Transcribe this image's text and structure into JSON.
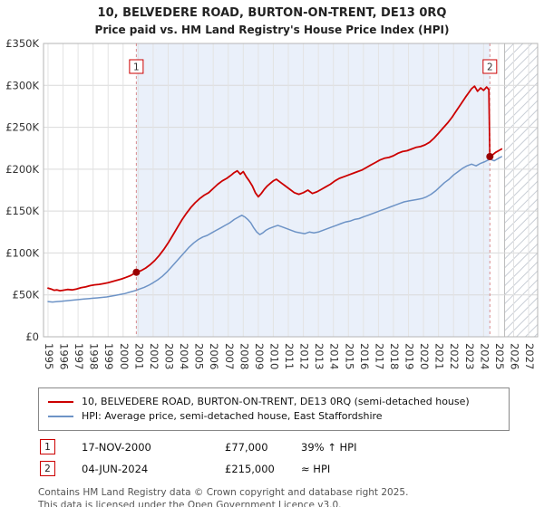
{
  "chart_data": {
    "type": "line",
    "title": "10, BELVEDERE ROAD, BURTON-ON-TRENT, DE13 0RQ",
    "subtitle": "Price paid vs. HM Land Registry's House Price Index (HPI)",
    "xlim": [
      1994.7,
      2027.6
    ],
    "ylim": [
      0,
      350
    ],
    "y_unit": "£K (thousands of pounds)",
    "grid": true,
    "legend_position": "below",
    "yticks": [
      {
        "v": 0,
        "label": "£0"
      },
      {
        "v": 50,
        "label": "£50K"
      },
      {
        "v": 100,
        "label": "£100K"
      },
      {
        "v": 150,
        "label": "£150K"
      },
      {
        "v": 200,
        "label": "£200K"
      },
      {
        "v": 250,
        "label": "£250K"
      },
      {
        "v": 300,
        "label": "£300K"
      },
      {
        "v": 350,
        "label": "£350K"
      }
    ],
    "xticks": [
      1995,
      1996,
      1997,
      1998,
      1999,
      2000,
      2001,
      2002,
      2003,
      2004,
      2005,
      2006,
      2007,
      2008,
      2009,
      2010,
      2011,
      2012,
      2013,
      2014,
      2015,
      2016,
      2017,
      2018,
      2019,
      2020,
      2021,
      2022,
      2023,
      2024,
      2025,
      2026,
      2027
    ],
    "shaded_region": {
      "from": 2000.88,
      "to": 2024.42,
      "color": "#eaf0fa"
    },
    "hatched_region": {
      "from": 2025.4,
      "to": 2027.6
    },
    "sale_markers": [
      {
        "n": "1",
        "x": 2000.88,
        "y": 77
      },
      {
        "n": "2",
        "x": 2024.42,
        "y": 215
      }
    ],
    "series": [
      {
        "name": "property-price",
        "color": "#cc0000",
        "width": 1.8,
        "points": [
          [
            1995.0,
            58
          ],
          [
            1995.2,
            57
          ],
          [
            1995.4,
            55.5
          ],
          [
            1995.6,
            56
          ],
          [
            1995.8,
            55
          ],
          [
            1996.0,
            55.5
          ],
          [
            1996.3,
            56.5
          ],
          [
            1996.6,
            56
          ],
          [
            1996.9,
            57
          ],
          [
            1997.2,
            58.5
          ],
          [
            1997.5,
            59.5
          ],
          [
            1997.8,
            61
          ],
          [
            1998.1,
            62
          ],
          [
            1998.4,
            62.5
          ],
          [
            1998.7,
            63.5
          ],
          [
            1999.0,
            64.5
          ],
          [
            1999.3,
            66
          ],
          [
            1999.6,
            67.5
          ],
          [
            1999.9,
            69
          ],
          [
            2000.2,
            71
          ],
          [
            2000.5,
            73
          ],
          [
            2000.88,
            77
          ],
          [
            2001.2,
            79
          ],
          [
            2001.5,
            82
          ],
          [
            2001.8,
            86
          ],
          [
            2002.1,
            91
          ],
          [
            2002.4,
            97
          ],
          [
            2002.7,
            104
          ],
          [
            2003.0,
            112
          ],
          [
            2003.3,
            121
          ],
          [
            2003.6,
            130
          ],
          [
            2003.9,
            139
          ],
          [
            2004.2,
            147
          ],
          [
            2004.5,
            154
          ],
          [
            2004.8,
            160
          ],
          [
            2005.1,
            165
          ],
          [
            2005.4,
            169
          ],
          [
            2005.7,
            172
          ],
          [
            2006.0,
            177
          ],
          [
            2006.3,
            182
          ],
          [
            2006.6,
            186
          ],
          [
            2006.9,
            189
          ],
          [
            2007.2,
            193
          ],
          [
            2007.4,
            196
          ],
          [
            2007.6,
            198
          ],
          [
            2007.8,
            194
          ],
          [
            2008.0,
            197
          ],
          [
            2008.2,
            191
          ],
          [
            2008.4,
            186
          ],
          [
            2008.6,
            180
          ],
          [
            2008.8,
            172
          ],
          [
            2009.0,
            167
          ],
          [
            2009.2,
            171
          ],
          [
            2009.4,
            176
          ],
          [
            2009.6,
            180
          ],
          [
            2009.8,
            183
          ],
          [
            2010.0,
            186
          ],
          [
            2010.2,
            188
          ],
          [
            2010.5,
            184
          ],
          [
            2010.8,
            180
          ],
          [
            2011.1,
            176
          ],
          [
            2011.4,
            172
          ],
          [
            2011.7,
            170
          ],
          [
            2012.0,
            172
          ],
          [
            2012.3,
            175
          ],
          [
            2012.6,
            171
          ],
          [
            2012.9,
            173
          ],
          [
            2013.2,
            176
          ],
          [
            2013.5,
            179
          ],
          [
            2013.8,
            182
          ],
          [
            2014.1,
            186
          ],
          [
            2014.4,
            189
          ],
          [
            2014.7,
            191
          ],
          [
            2015.0,
            193
          ],
          [
            2015.3,
            195
          ],
          [
            2015.6,
            197
          ],
          [
            2015.9,
            199
          ],
          [
            2016.2,
            202
          ],
          [
            2016.5,
            205
          ],
          [
            2016.8,
            208
          ],
          [
            2017.1,
            211
          ],
          [
            2017.4,
            213
          ],
          [
            2017.7,
            214
          ],
          [
            2018.0,
            216
          ],
          [
            2018.3,
            219
          ],
          [
            2018.6,
            221
          ],
          [
            2018.9,
            222
          ],
          [
            2019.2,
            224
          ],
          [
            2019.5,
            226
          ],
          [
            2019.8,
            227
          ],
          [
            2020.1,
            229
          ],
          [
            2020.4,
            232
          ],
          [
            2020.7,
            237
          ],
          [
            2021.0,
            243
          ],
          [
            2021.3,
            249
          ],
          [
            2021.6,
            255
          ],
          [
            2021.9,
            262
          ],
          [
            2022.2,
            270
          ],
          [
            2022.5,
            278
          ],
          [
            2022.8,
            286
          ],
          [
            2023.0,
            291
          ],
          [
            2023.2,
            296
          ],
          [
            2023.4,
            299
          ],
          [
            2023.6,
            293
          ],
          [
            2023.8,
            297
          ],
          [
            2024.0,
            294
          ],
          [
            2024.2,
            298
          ],
          [
            2024.35,
            295
          ],
          [
            2024.42,
            215
          ],
          [
            2024.6,
            217
          ],
          [
            2024.8,
            220
          ],
          [
            2025.0,
            222
          ],
          [
            2025.2,
            224
          ]
        ]
      },
      {
        "name": "hpi-average-price",
        "color": "#6d93c6",
        "width": 1.5,
        "points": [
          [
            1995.0,
            42
          ],
          [
            1995.3,
            41.5
          ],
          [
            1995.6,
            42
          ],
          [
            1995.9,
            42.5
          ],
          [
            1996.2,
            43
          ],
          [
            1996.5,
            43.5
          ],
          [
            1996.8,
            44
          ],
          [
            1997.1,
            44.5
          ],
          [
            1997.4,
            45
          ],
          [
            1997.7,
            45.5
          ],
          [
            1998.0,
            46
          ],
          [
            1998.3,
            46.5
          ],
          [
            1998.6,
            47
          ],
          [
            1998.9,
            47.5
          ],
          [
            1999.2,
            48.5
          ],
          [
            1999.5,
            49.5
          ],
          [
            1999.8,
            50.5
          ],
          [
            2000.1,
            51.5
          ],
          [
            2000.4,
            53
          ],
          [
            2000.7,
            54.5
          ],
          [
            2000.88,
            55.5
          ],
          [
            2001.1,
            57
          ],
          [
            2001.4,
            59
          ],
          [
            2001.7,
            61.5
          ],
          [
            2002.0,
            64.5
          ],
          [
            2002.3,
            68
          ],
          [
            2002.6,
            72
          ],
          [
            2002.9,
            77
          ],
          [
            2003.2,
            83
          ],
          [
            2003.5,
            89
          ],
          [
            2003.8,
            95
          ],
          [
            2004.1,
            101
          ],
          [
            2004.4,
            107
          ],
          [
            2004.7,
            112
          ],
          [
            2005.0,
            116
          ],
          [
            2005.3,
            119
          ],
          [
            2005.6,
            121
          ],
          [
            2005.9,
            124
          ],
          [
            2006.2,
            127
          ],
          [
            2006.5,
            130
          ],
          [
            2006.8,
            133
          ],
          [
            2007.1,
            136
          ],
          [
            2007.4,
            140
          ],
          [
            2007.7,
            143
          ],
          [
            2007.9,
            145
          ],
          [
            2008.1,
            143
          ],
          [
            2008.3,
            140
          ],
          [
            2008.5,
            136
          ],
          [
            2008.7,
            130
          ],
          [
            2008.9,
            125
          ],
          [
            2009.1,
            122
          ],
          [
            2009.3,
            124
          ],
          [
            2009.5,
            127
          ],
          [
            2009.7,
            129
          ],
          [
            2010.0,
            131
          ],
          [
            2010.3,
            133
          ],
          [
            2010.6,
            131
          ],
          [
            2010.9,
            129
          ],
          [
            2011.2,
            127
          ],
          [
            2011.5,
            125
          ],
          [
            2011.8,
            124
          ],
          [
            2012.1,
            123
          ],
          [
            2012.4,
            125
          ],
          [
            2012.7,
            124
          ],
          [
            2013.0,
            125
          ],
          [
            2013.3,
            127
          ],
          [
            2013.6,
            129
          ],
          [
            2013.9,
            131
          ],
          [
            2014.2,
            133
          ],
          [
            2014.5,
            135
          ],
          [
            2014.8,
            137
          ],
          [
            2015.1,
            138
          ],
          [
            2015.4,
            140
          ],
          [
            2015.7,
            141
          ],
          [
            2016.0,
            143
          ],
          [
            2016.3,
            145
          ],
          [
            2016.6,
            147
          ],
          [
            2016.9,
            149
          ],
          [
            2017.2,
            151
          ],
          [
            2017.5,
            153
          ],
          [
            2017.8,
            155
          ],
          [
            2018.1,
            157
          ],
          [
            2018.4,
            159
          ],
          [
            2018.7,
            161
          ],
          [
            2019.0,
            162
          ],
          [
            2019.3,
            163
          ],
          [
            2019.6,
            164
          ],
          [
            2019.9,
            165
          ],
          [
            2020.2,
            167
          ],
          [
            2020.5,
            170
          ],
          [
            2020.8,
            174
          ],
          [
            2021.1,
            179
          ],
          [
            2021.4,
            184
          ],
          [
            2021.7,
            188
          ],
          [
            2022.0,
            193
          ],
          [
            2022.3,
            197
          ],
          [
            2022.6,
            201
          ],
          [
            2022.9,
            204
          ],
          [
            2023.2,
            206
          ],
          [
            2023.5,
            204
          ],
          [
            2023.8,
            207
          ],
          [
            2024.1,
            209
          ],
          [
            2024.42,
            212
          ],
          [
            2024.7,
            210
          ],
          [
            2025.0,
            213
          ],
          [
            2025.2,
            215
          ]
        ]
      }
    ]
  },
  "legend": {
    "items": [
      {
        "label": "10, BELVEDERE ROAD, BURTON-ON-TRENT, DE13 0RQ (semi-detached house)",
        "color": "#cc0000"
      },
      {
        "label": "HPI: Average price, semi-detached house, East Staffordshire",
        "color": "#6d93c6"
      }
    ]
  },
  "sales": [
    {
      "num": "1",
      "date": "17-NOV-2000",
      "price": "£77,000",
      "hpi": "39% ↑ HPI"
    },
    {
      "num": "2",
      "date": "04-JUN-2024",
      "price": "£215,000",
      "hpi": "≈ HPI"
    }
  ],
  "footer": {
    "line1": "Contains HM Land Registry data © Crown copyright and database right 2025.",
    "line2": "This data is licensed under the Open Government Licence v3.0."
  }
}
